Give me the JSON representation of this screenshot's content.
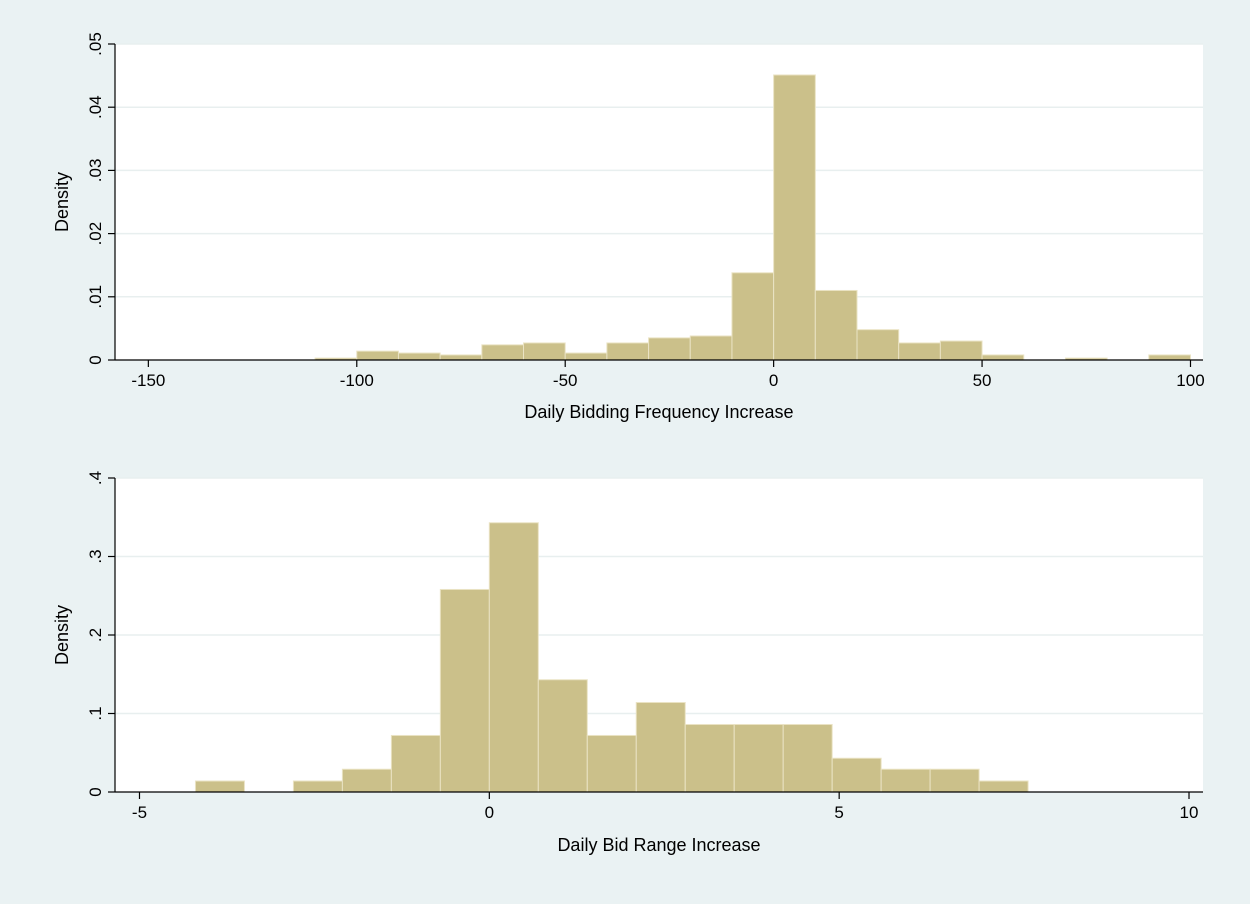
{
  "colors": {
    "background": "#eaf2f3",
    "plot_background": "#ffffff",
    "bar_fill": "#cbc08a",
    "bar_edge": "#eae3c4",
    "gridline": "#e8efef",
    "axis": "#000000"
  },
  "chart_data": [
    {
      "type": "bar",
      "xlabel": "Daily Bidding Frequency Increase",
      "ylabel": "Density",
      "xlim": [
        -158,
        103
      ],
      "ylim": [
        0,
        0.05
      ],
      "xticks": [
        -150,
        -100,
        -50,
        0,
        50,
        100
      ],
      "xtick_labels": [
        "-150",
        "-100",
        "-50",
        "0",
        "50",
        "100"
      ],
      "yticks": [
        0,
        0.01,
        0.02,
        0.03,
        0.04,
        0.05
      ],
      "ytick_labels": [
        "0",
        ".01",
        ".02",
        ".03",
        ".04",
        ".05"
      ],
      "grid": true,
      "bin_width": 10,
      "bin_starts": [
        -110,
        -100,
        -90,
        -80,
        -70,
        -60,
        -50,
        -40,
        -30,
        -20,
        -10,
        0,
        10,
        20,
        30,
        40,
        50,
        70,
        90
      ],
      "values": [
        0.0003,
        0.0014,
        0.0011,
        0.0008,
        0.0024,
        0.0027,
        0.0011,
        0.0027,
        0.0035,
        0.0038,
        0.0138,
        0.0451,
        0.011,
        0.0048,
        0.0027,
        0.003,
        0.0008,
        0.0003,
        0.0008
      ]
    },
    {
      "type": "bar",
      "xlabel": "Daily Bid Range Increase",
      "ylabel": "Density",
      "xlim": [
        -5.35,
        10.2
      ],
      "ylim": [
        0,
        0.4
      ],
      "xticks": [
        -5,
        0,
        5,
        10
      ],
      "xtick_labels": [
        "-5",
        "0",
        "5",
        "10"
      ],
      "yticks": [
        0,
        0.1,
        0.2,
        0.3,
        0.4
      ],
      "ytick_labels": [
        "0",
        ".1",
        ".2",
        ".3",
        ".4"
      ],
      "grid": true,
      "bin_width": 0.7,
      "bin_starts": [
        -4.2,
        -2.8,
        -2.1,
        -1.4,
        -0.7,
        0,
        0.7,
        1.4,
        2.1,
        2.8,
        3.5,
        4.2,
        4.9,
        5.6,
        6.3,
        7.0
      ],
      "values": [
        0.014,
        0.014,
        0.029,
        0.072,
        0.258,
        0.343,
        0.143,
        0.072,
        0.114,
        0.086,
        0.086,
        0.086,
        0.043,
        0.029,
        0.029,
        0.014
      ]
    }
  ]
}
